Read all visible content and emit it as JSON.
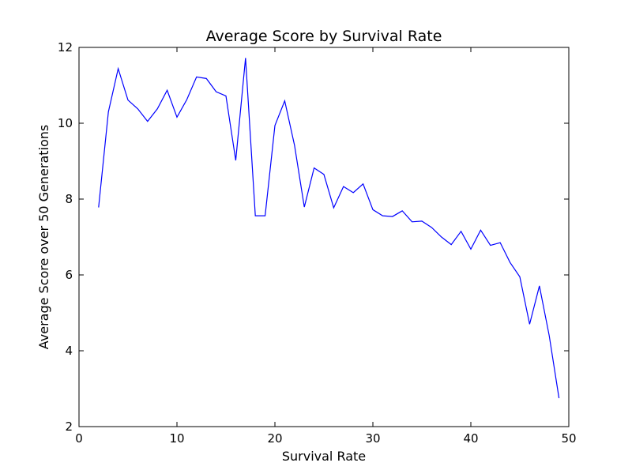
{
  "chart_data": {
    "type": "line",
    "title": "Average Score by Survival Rate",
    "xlabel": "Survival Rate",
    "ylabel": "Average Score over 50 Generations",
    "xlim": [
      0,
      50
    ],
    "ylim": [
      2,
      12
    ],
    "xticks": [
      0,
      10,
      20,
      30,
      40,
      50
    ],
    "yticks": [
      2,
      4,
      6,
      8,
      10,
      12
    ],
    "grid": false,
    "colors": {
      "line": "#0000ff",
      "axes": "#000000",
      "background": "#ffffff"
    },
    "series": [
      {
        "x": [
          2,
          3,
          4,
          5,
          6,
          7,
          8,
          9,
          10,
          11,
          12,
          13,
          14,
          15,
          16,
          17,
          18,
          19,
          20,
          21,
          22,
          23,
          24,
          25,
          26,
          27,
          28,
          29,
          30,
          31,
          32,
          33,
          34,
          35,
          36,
          37,
          38,
          39,
          40,
          41,
          42,
          43,
          44,
          45,
          46,
          47,
          48,
          49
        ],
        "values": [
          7.78,
          10.3,
          11.44,
          10.61,
          10.38,
          10.05,
          10.38,
          10.87,
          10.16,
          10.62,
          11.22,
          11.18,
          10.83,
          10.72,
          9.02,
          11.72,
          7.56,
          7.56,
          9.94,
          10.59,
          9.42,
          7.79,
          8.82,
          8.65,
          7.77,
          8.33,
          8.17,
          8.4,
          7.72,
          7.56,
          7.54,
          7.69,
          7.4,
          7.42,
          7.25,
          7.0,
          6.8,
          7.15,
          6.68,
          7.18,
          6.78,
          6.85,
          6.33,
          5.95,
          4.7,
          5.71,
          4.4,
          2.75
        ]
      }
    ]
  }
}
